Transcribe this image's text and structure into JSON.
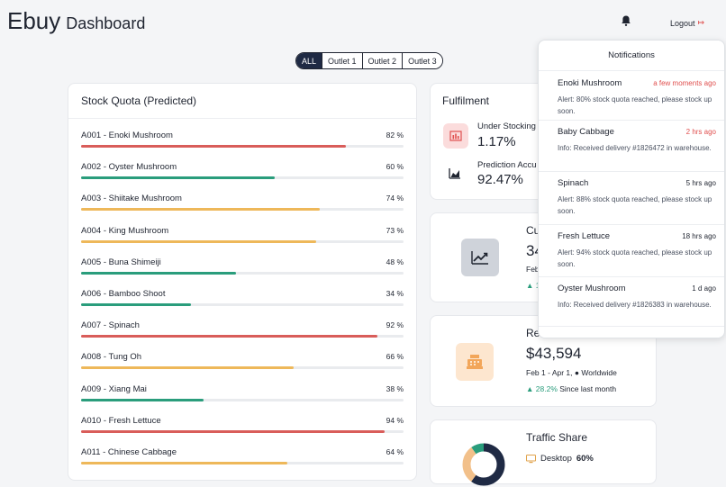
{
  "header": {
    "logo": "Ebuy",
    "title": "Dashboard",
    "logout": "Logout"
  },
  "filters": [
    "ALL",
    "Outlet 1",
    "Outlet 2",
    "Outlet 3"
  ],
  "stock": {
    "title": "Stock Quota (Predicted)",
    "items": [
      {
        "name": "A001 - Enoki Mushroom",
        "pct": "82 %",
        "value": 82,
        "color": "#d95d5a"
      },
      {
        "name": "A002 - Oyster Mushroom",
        "pct": "60 %",
        "value": 60,
        "color": "#2a9d7c"
      },
      {
        "name": "A003 - Shiitake Mushroom",
        "pct": "74 %",
        "value": 74,
        "color": "#eeb85a"
      },
      {
        "name": "A004 - King Mushroom",
        "pct": "73 %",
        "value": 73,
        "color": "#eeb85a"
      },
      {
        "name": "A005 - Buna Shimeiji",
        "pct": "48 %",
        "value": 48,
        "color": "#2a9d7c"
      },
      {
        "name": "A006 - Bamboo Shoot",
        "pct": "34 %",
        "value": 34,
        "color": "#2a9d7c"
      },
      {
        "name": "A007 - Spinach",
        "pct": "92 %",
        "value": 92,
        "color": "#d95d5a"
      },
      {
        "name": "A008 - Tung Oh",
        "pct": "66 %",
        "value": 66,
        "color": "#eeb85a"
      },
      {
        "name": "A009 - Xiang Mai",
        "pct": "38 %",
        "value": 38,
        "color": "#2a9d7c"
      },
      {
        "name": "A010 - Fresh Lettuce",
        "pct": "94 %",
        "value": 94,
        "color": "#d95d5a"
      },
      {
        "name": "A011 - Chinese Cabbage",
        "pct": "64 %",
        "value": 64,
        "color": "#eeb85a"
      }
    ]
  },
  "fulfilment": {
    "title": "Fulfilment",
    "under_label": "Under Stocking",
    "under_value": "1.17%",
    "pred_label": "Prediction Accu",
    "pred_value": "92.47%"
  },
  "customers": {
    "label": "Cu",
    "value": "34",
    "sub": "Feb",
    "change": "1"
  },
  "revenue": {
    "label": "Re",
    "value": "$43,594",
    "sub": "Feb 1 - Apr 1, ● Worldwide",
    "change_pct": "28.2%",
    "change_text": "Since last month"
  },
  "traffic": {
    "label": "Traffic Share",
    "device": "Desktop",
    "device_pct": "60%"
  },
  "notifications": {
    "title": "Notifications",
    "items": [
      {
        "title": "Enoki Mushroom",
        "time": "a few moments ago",
        "recent": true,
        "body": "Alert: 80% stock quota reached, please stock up soon."
      },
      {
        "title": "Baby Cabbage",
        "time": "2 hrs ago",
        "recent": true,
        "body": "Info: Received delivery #1826472 in warehouse."
      },
      {
        "title": "Spinach",
        "time": "5 hrs ago",
        "recent": false,
        "body": "Alert: 88% stock quota reached, please stock up soon."
      },
      {
        "title": "Fresh Lettuce",
        "time": "18 hrs ago",
        "recent": false,
        "body": "Alert: 94% stock quota reached, please stock up soon."
      },
      {
        "title": "Oyster Mushroom",
        "time": "1 d ago",
        "recent": false,
        "body": "Info: Received delivery #1826383 in warehouse."
      }
    ]
  },
  "colors": {
    "accent": "#1f2a44",
    "danger": "#d95d5a",
    "success": "#2a9d7c",
    "warning": "#eeb85a"
  },
  "icons": [
    "bell-icon",
    "logout-icon",
    "chart-icon",
    "trend-icon",
    "register-icon",
    "desktop-icon"
  ]
}
